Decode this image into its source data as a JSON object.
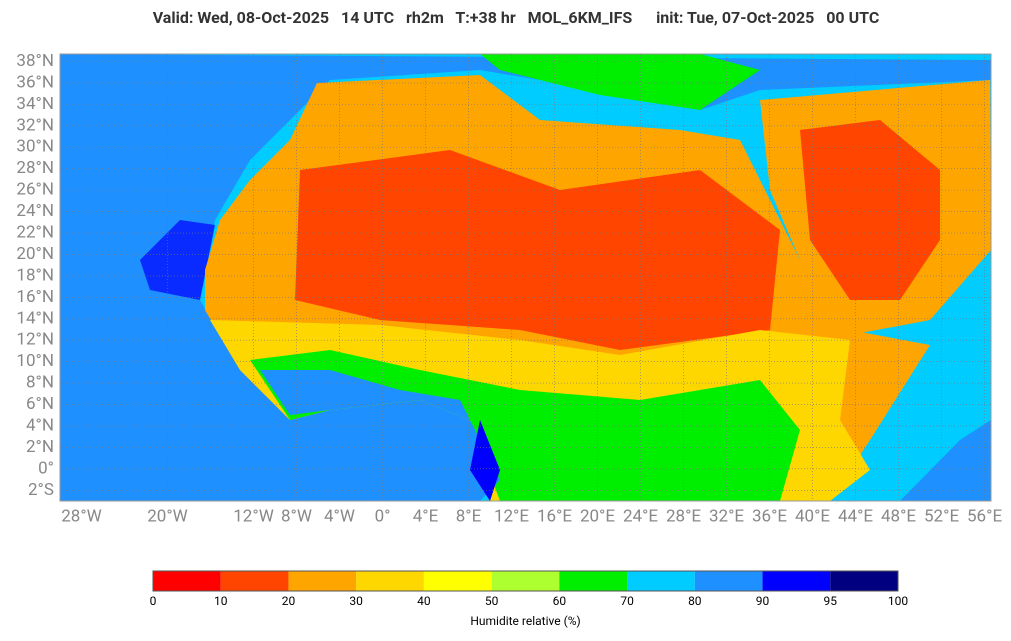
{
  "chart_data": {
    "type": "map",
    "title": "Valid: Wed, 08-Oct-2025   14 UTC   rh2m   T:+38 hr   MOL_6KM_IFS      init: Tue, 07-Oct-2025   00 UTC",
    "xlim": [
      -30,
      56.6
    ],
    "ylim": [
      -3,
      38.7
    ],
    "grid": true,
    "xticks": [
      {
        "value": -28,
        "label": "28°W"
      },
      {
        "value": -20,
        "label": "20°W"
      },
      {
        "value": -12,
        "label": "12°W"
      },
      {
        "value": -8,
        "label": "8°W"
      },
      {
        "value": -4,
        "label": "4°W"
      },
      {
        "value": 0,
        "label": "0°"
      },
      {
        "value": 4,
        "label": "4°E"
      },
      {
        "value": 8,
        "label": "8°E"
      },
      {
        "value": 12,
        "label": "12°E"
      },
      {
        "value": 16,
        "label": "16°E"
      },
      {
        "value": 20,
        "label": "20°E"
      },
      {
        "value": 24,
        "label": "24°E"
      },
      {
        "value": 28,
        "label": "28°E"
      },
      {
        "value": 32,
        "label": "32°E"
      },
      {
        "value": 36,
        "label": "36°E"
      },
      {
        "value": 40,
        "label": "40°E"
      },
      {
        "value": 44,
        "label": "44°E"
      },
      {
        "value": 48,
        "label": "48°E"
      },
      {
        "value": 52,
        "label": "52°E"
      },
      {
        "value": 56,
        "label": "56°E"
      }
    ],
    "yticks": [
      {
        "value": 38,
        "label": "38°N"
      },
      {
        "value": 36,
        "label": "36°N"
      },
      {
        "value": 34,
        "label": "34°N"
      },
      {
        "value": 32,
        "label": "32°N"
      },
      {
        "value": 30,
        "label": "30°N"
      },
      {
        "value": 28,
        "label": "28°N"
      },
      {
        "value": 26,
        "label": "26°N"
      },
      {
        "value": 24,
        "label": "24°N"
      },
      {
        "value": 22,
        "label": "22°N"
      },
      {
        "value": 20,
        "label": "20°N"
      },
      {
        "value": 18,
        "label": "18°N"
      },
      {
        "value": 16,
        "label": "16°N"
      },
      {
        "value": 14,
        "label": "14°N"
      },
      {
        "value": 12,
        "label": "12°N"
      },
      {
        "value": 10,
        "label": "10°N"
      },
      {
        "value": 8,
        "label": "8°N"
      },
      {
        "value": 6,
        "label": "6°N"
      },
      {
        "value": 4,
        "label": "4°N"
      },
      {
        "value": 2,
        "label": "2°N"
      },
      {
        "value": 0,
        "label": "0°"
      },
      {
        "value": -2,
        "label": "2°S"
      }
    ],
    "colorbar": {
      "label": "Humidite relative (%)",
      "levels": [
        0,
        10,
        20,
        30,
        40,
        50,
        60,
        70,
        80,
        90,
        95,
        100
      ],
      "colors": [
        "#ff0000",
        "#ff4500",
        "#ffa500",
        "#ffd700",
        "#ffff00",
        "#adff2f",
        "#00ee00",
        "#00ccff",
        "#1e90ff",
        "#0000ff",
        "#000080"
      ]
    }
  }
}
